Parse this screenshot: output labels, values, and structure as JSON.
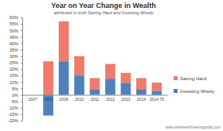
{
  "chart_data": {
    "type": "bar",
    "title": "Year on Year Change in Wealth",
    "subtitle": "attributed to both Saving Hard and Investing Wisely",
    "categories": [
      "2007",
      "2008",
      "2009",
      "2010",
      "2011",
      "2012",
      "2013",
      "2014",
      "2014 75"
    ],
    "series": [
      {
        "name": "Saving Hard",
        "color": "#ee7b6b",
        "values": [
          0,
          26,
          31,
          15,
          9,
          11.5,
          8,
          9,
          6.5
        ]
      },
      {
        "name": "Investing Wisely",
        "color": "#4f81bd",
        "values": [
          0,
          -16,
          26,
          15,
          4,
          12.5,
          9,
          4,
          3
        ]
      }
    ],
    "stacked": true,
    "ylim": [
      -20,
      60
    ],
    "yticks": [
      {
        "value": -20,
        "label": "-20%"
      },
      {
        "value": -15,
        "label": "-15%"
      },
      {
        "value": -10,
        "label": "-10%"
      },
      {
        "value": -5,
        "label": "-5%"
      },
      {
        "value": 0,
        "label": "0%"
      },
      {
        "value": 5,
        "label": "5%"
      },
      {
        "value": 10,
        "label": "10%"
      },
      {
        "value": 15,
        "label": "15%"
      },
      {
        "value": 20,
        "label": "20%"
      },
      {
        "value": 25,
        "label": "25%"
      },
      {
        "value": 30,
        "label": "30%"
      },
      {
        "value": 35,
        "label": "35%"
      },
      {
        "value": 40,
        "label": "40%"
      },
      {
        "value": 45,
        "label": "45%"
      },
      {
        "value": 50,
        "label": "50%"
      },
      {
        "value": 55,
        "label": "55%"
      },
      {
        "value": 60,
        "label": "60%"
      }
    ],
    "grid": false,
    "legend": "right",
    "annotations": [
      "www.retirementinvestingtoday.com"
    ]
  }
}
